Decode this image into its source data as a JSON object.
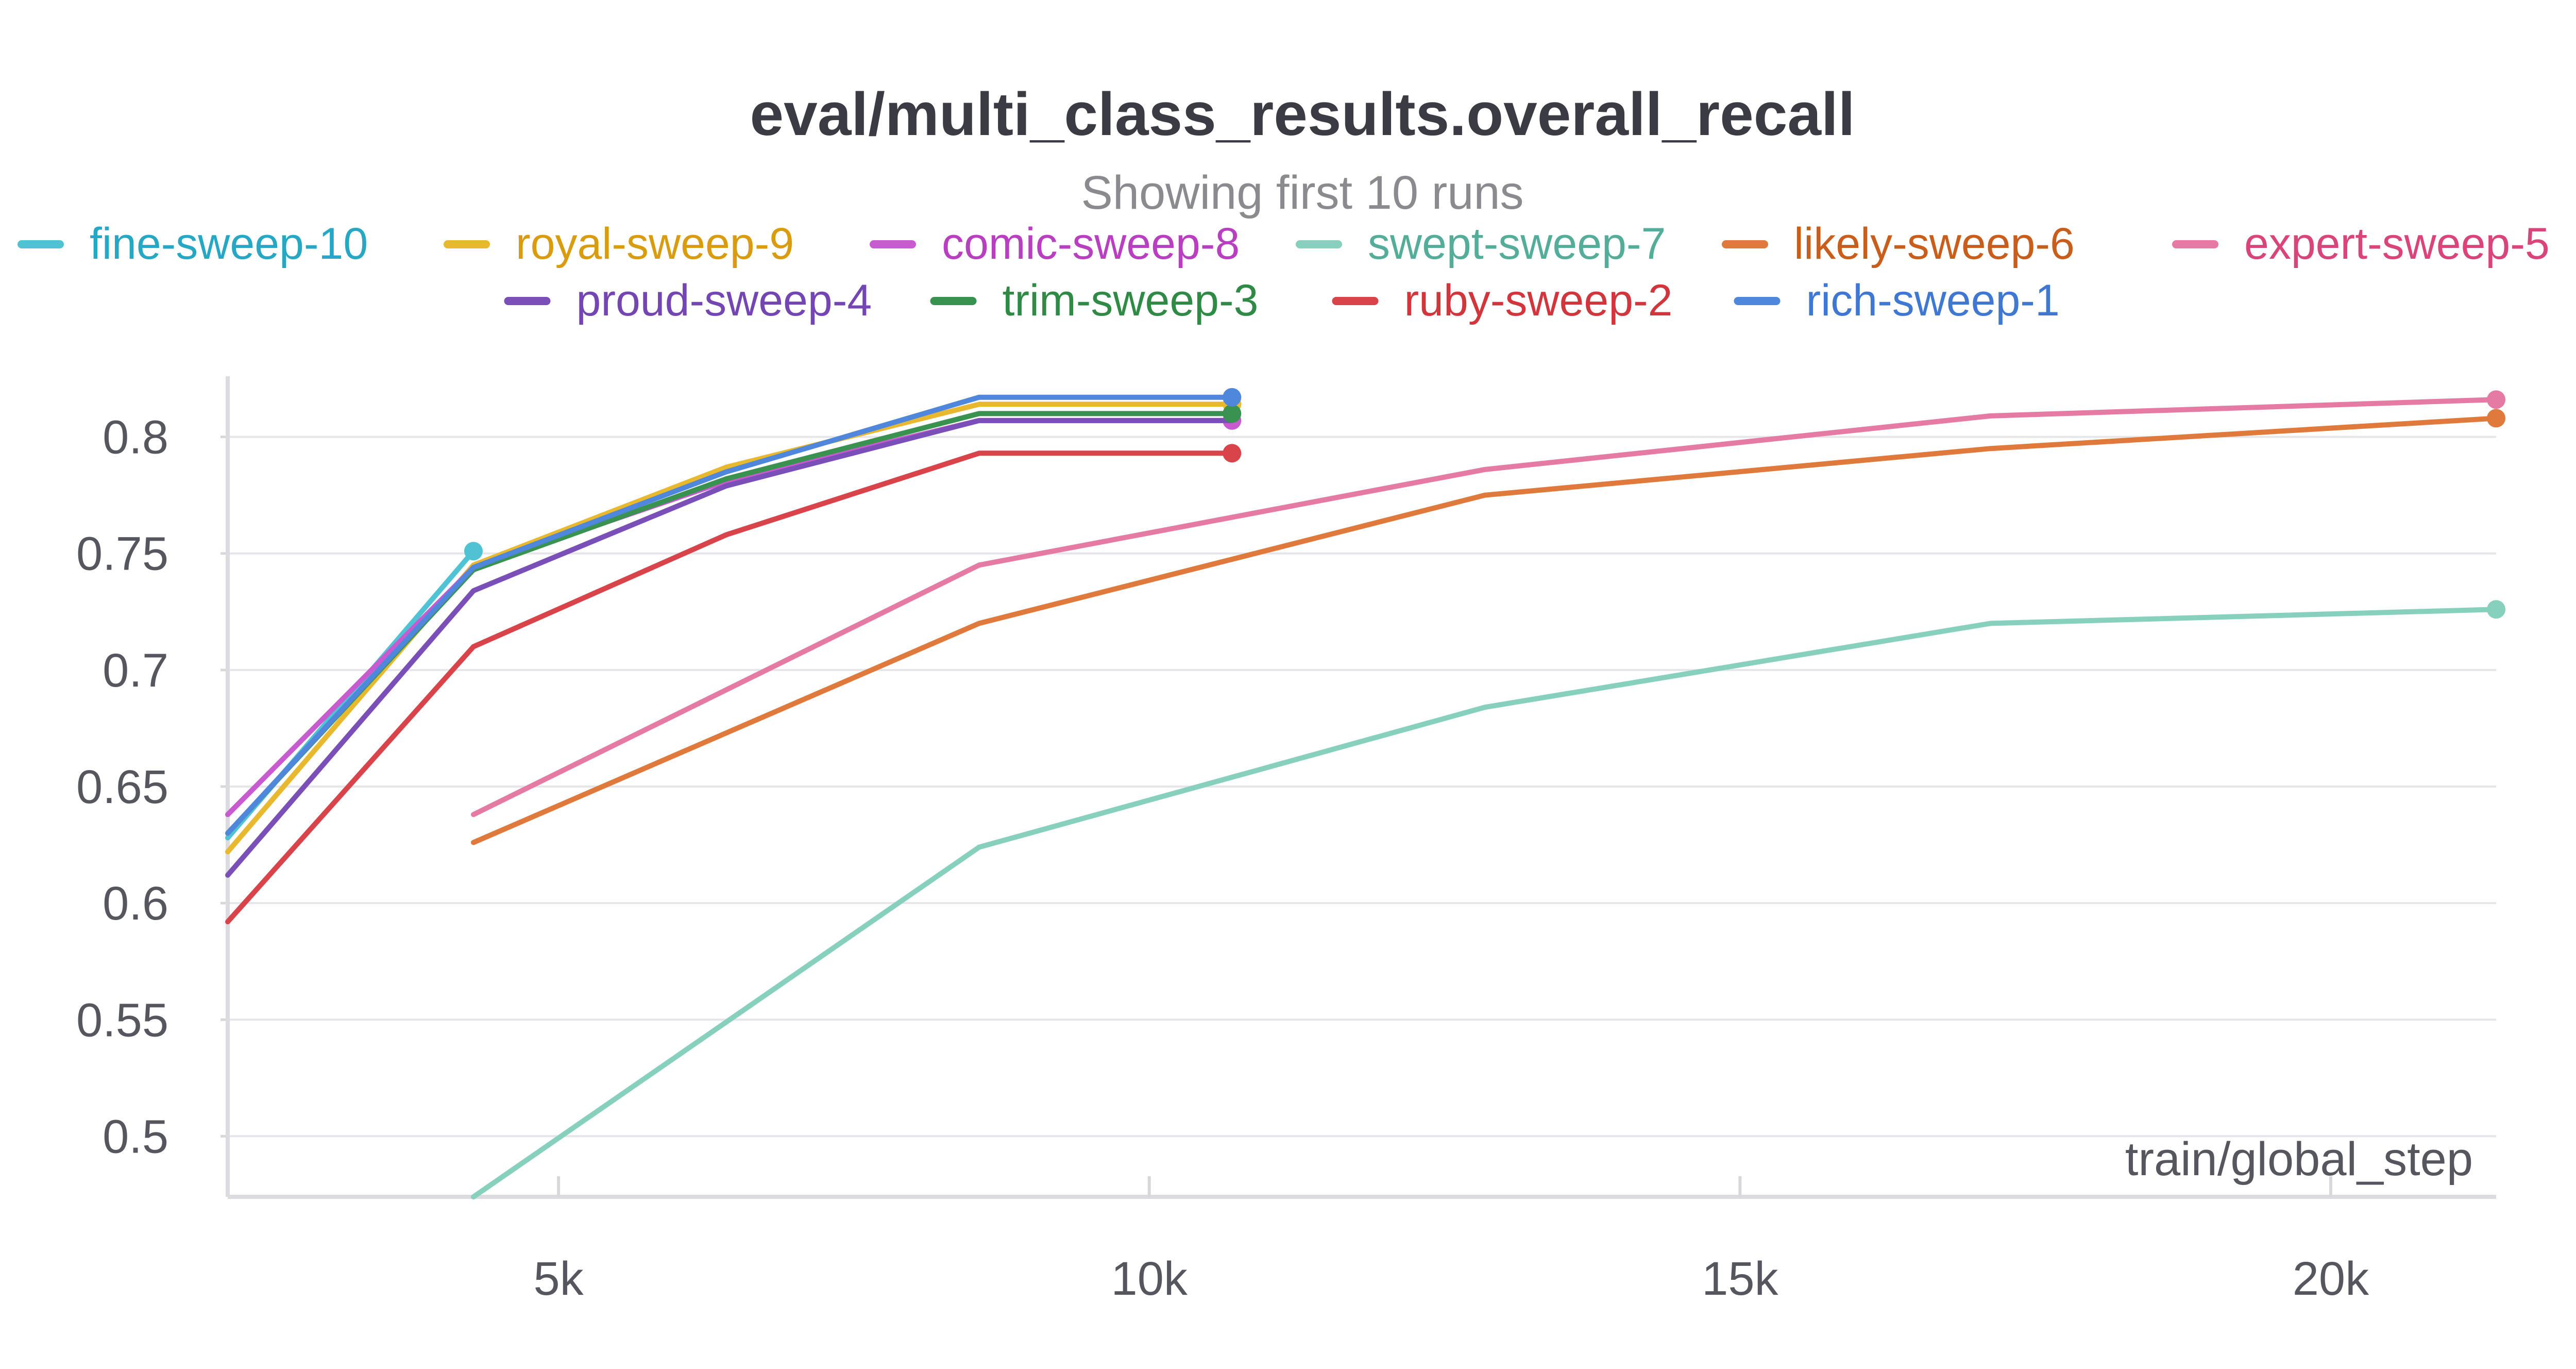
{
  "chart_data": {
    "type": "line",
    "title": "eval/multi_class_results.overall_recall",
    "subtitle": "Showing first 10 runs",
    "xlabel": "train/global_step",
    "ylabel": "",
    "xlim": [
      2200,
      21400
    ],
    "ylim": [
      0.474,
      0.826
    ],
    "xticks": [
      {
        "value": 5000,
        "label": "5k"
      },
      {
        "value": 10000,
        "label": "10k"
      },
      {
        "value": 15000,
        "label": "15k"
      },
      {
        "value": 20000,
        "label": "20k"
      }
    ],
    "yticks": [
      {
        "value": 0.5,
        "label": "0.5"
      },
      {
        "value": 0.55,
        "label": "0.55"
      },
      {
        "value": 0.6,
        "label": "0.6"
      },
      {
        "value": 0.65,
        "label": "0.65"
      },
      {
        "value": 0.7,
        "label": "0.7"
      },
      {
        "value": 0.75,
        "label": "0.75"
      },
      {
        "value": 0.8,
        "label": "0.8"
      }
    ],
    "grid": true,
    "legend_position": "top",
    "series": [
      {
        "name": "fine-sweep-10",
        "color": "#4fc3d4",
        "text_color": "#26a8c4",
        "end_marker": true,
        "points": [
          [
            2200,
            0.628
          ],
          [
            4280,
            0.751
          ]
        ]
      },
      {
        "name": "royal-sweep-9",
        "color": "#e8b82e",
        "text_color": "#d99c0f",
        "end_marker": true,
        "points": [
          [
            2200,
            0.622
          ],
          [
            4280,
            0.745
          ],
          [
            6420,
            0.787
          ],
          [
            8560,
            0.814
          ],
          [
            10700,
            0.814
          ]
        ]
      },
      {
        "name": "comic-sweep-8",
        "color": "#c95bd0",
        "text_color": "#b83fc0",
        "end_marker": true,
        "points": [
          [
            2200,
            0.638
          ],
          [
            4280,
            0.744
          ],
          [
            6420,
            0.781
          ],
          [
            8560,
            0.807
          ],
          [
            10700,
            0.807
          ]
        ]
      },
      {
        "name": "swept-sweep-7",
        "color": "#87d0bd",
        "text_color": "#54ad98",
        "end_marker": true,
        "points": [
          [
            4280,
            0.474
          ],
          [
            8560,
            0.624
          ],
          [
            12840,
            0.684
          ],
          [
            17120,
            0.72
          ],
          [
            21400,
            0.726
          ]
        ]
      },
      {
        "name": "likely-sweep-6",
        "color": "#e07a3c",
        "text_color": "#c95e1c",
        "end_marker": true,
        "points": [
          [
            4280,
            0.626
          ],
          [
            8560,
            0.72
          ],
          [
            12840,
            0.775
          ],
          [
            17120,
            0.795
          ],
          [
            21400,
            0.808
          ]
        ]
      },
      {
        "name": "expert-sweep-5",
        "color": "#e57aa4",
        "text_color": "#d9447a",
        "end_marker": true,
        "points": [
          [
            4280,
            0.638
          ],
          [
            8560,
            0.745
          ],
          [
            12840,
            0.786
          ],
          [
            17120,
            0.809
          ],
          [
            21400,
            0.816
          ]
        ]
      },
      {
        "name": "proud-sweep-4",
        "color": "#7a4fb8",
        "text_color": "#7446b4",
        "end_marker": false,
        "points": [
          [
            2200,
            0.612
          ],
          [
            4280,
            0.734
          ],
          [
            6420,
            0.779
          ],
          [
            8560,
            0.807
          ],
          [
            10700,
            0.807
          ]
        ]
      },
      {
        "name": "trim-sweep-3",
        "color": "#3a9250",
        "text_color": "#2e8a44",
        "end_marker": true,
        "points": [
          [
            2200,
            0.63
          ],
          [
            4280,
            0.743
          ],
          [
            6420,
            0.782
          ],
          [
            8560,
            0.81
          ],
          [
            10700,
            0.81
          ]
        ]
      },
      {
        "name": "ruby-sweep-2",
        "color": "#d9434a",
        "text_color": "#d2363d",
        "end_marker": true,
        "points": [
          [
            2200,
            0.592
          ],
          [
            4280,
            0.71
          ],
          [
            6420,
            0.758
          ],
          [
            8560,
            0.793
          ],
          [
            10700,
            0.793
          ]
        ]
      },
      {
        "name": "rich-sweep-1",
        "color": "#4f87dc",
        "text_color": "#3f78d2",
        "end_marker": true,
        "points": [
          [
            2200,
            0.63
          ],
          [
            4280,
            0.744
          ],
          [
            6420,
            0.785
          ],
          [
            8560,
            0.817
          ],
          [
            10700,
            0.817
          ]
        ]
      }
    ]
  }
}
